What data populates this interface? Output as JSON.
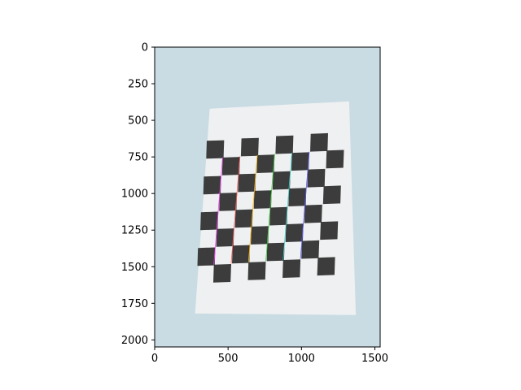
{
  "chart_data": {
    "type": "image",
    "title": "",
    "xlabel": "",
    "ylabel": "",
    "xlim": [
      0,
      1536
    ],
    "ylim": [
      2048,
      0
    ],
    "x_ticks": [
      0,
      500,
      1000,
      1500
    ],
    "y_ticks": [
      0,
      250,
      500,
      750,
      1000,
      1250,
      1500,
      1750,
      2000
    ],
    "x_tick_labels": [
      "0",
      "500",
      "1000",
      "1500"
    ],
    "y_tick_labels": [
      "0",
      "250",
      "500",
      "750",
      "1000",
      "1250",
      "1500",
      "1750",
      "2000"
    ],
    "grid": false,
    "image_content": {
      "subject": "printed checkerboard calibration pattern on white paper",
      "background_color": "#c9dbe3",
      "paper_color": "#eef0f1",
      "square_color": "#3c3c3c",
      "paper_corners": [
        [
          375,
          420
        ],
        [
          1325,
          370
        ],
        [
          1370,
          1830
        ],
        [
          275,
          1820
        ]
      ],
      "board": {
        "origin": [
          355,
          640
        ],
        "column_step": [
          118,
          -8
        ],
        "row_step": [
          -10,
          122
        ],
        "rows": 8,
        "cols": 8,
        "square_size": 118,
        "dark_parity": 0
      },
      "corner_line_colors": [
        "#ff3aff",
        "#ff5a5a",
        "#ffb000",
        "#3ccf3c",
        "#3ad0c8",
        "#5a5aff"
      ]
    }
  }
}
